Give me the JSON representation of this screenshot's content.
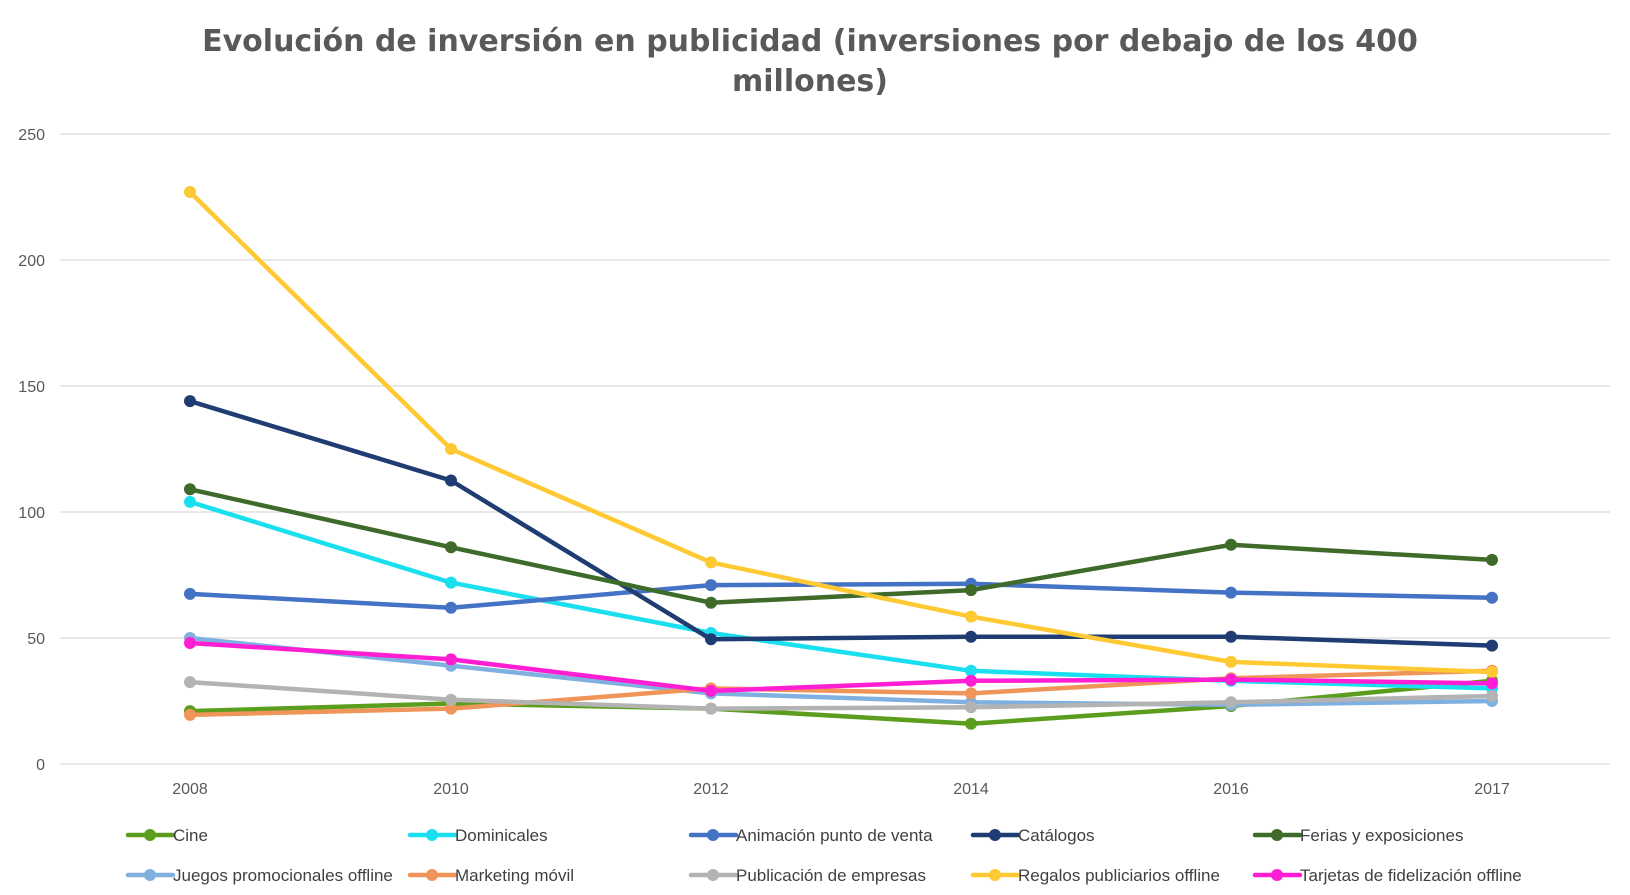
{
  "chart_data": {
    "type": "line",
    "title": "Evolución de inversión en publicidad (inversiones por debajo de los 400 millones)",
    "xlabel": "",
    "ylabel": "",
    "x": [
      "2008",
      "2010",
      "2012",
      "2014",
      "2016",
      "2017"
    ],
    "ylim": [
      0,
      250
    ],
    "yticks": [
      0,
      50,
      100,
      150,
      200,
      250
    ],
    "grid": true,
    "legend_position": "bottom",
    "series": [
      {
        "name": "Cine",
        "color": "#5b9e1e",
        "values": [
          21,
          24,
          22,
          16,
          23,
          33
        ]
      },
      {
        "name": "Dominicales",
        "color": "#19dfef",
        "values": [
          104,
          72,
          52,
          37,
          33,
          30
        ]
      },
      {
        "name": "Animación punto de venta",
        "color": "#4472c4",
        "values": [
          67.5,
          62,
          71,
          71.5,
          68,
          66
        ]
      },
      {
        "name": "Catálogos",
        "color": "#1f3c73",
        "values": [
          144,
          112.5,
          49.5,
          50.5,
          50.5,
          47
        ]
      },
      {
        "name": "Ferias y exposiciones",
        "color": "#3e6b2a",
        "values": [
          109,
          86,
          64,
          69,
          87,
          81
        ]
      },
      {
        "name": "Juegos promocionales offline",
        "color": "#7fb0e0",
        "values": [
          50,
          39,
          28,
          24.5,
          23.5,
          25
        ]
      },
      {
        "name": "Marketing móvil",
        "color": "#f0955a",
        "values": [
          19.5,
          22,
          30,
          28,
          34,
          37
        ]
      },
      {
        "name": "Publicación de empresas",
        "color": "#b3b3b3",
        "values": [
          32.5,
          25.5,
          22,
          22.5,
          24.5,
          27
        ]
      },
      {
        "name": "Regalos publiciarios offline",
        "color": "#ffc933",
        "values": [
          227,
          125,
          80,
          58.5,
          40.5,
          36.5
        ]
      },
      {
        "name": "Tarjetas de fidelización offline",
        "color": "#ff1ed3",
        "values": [
          48,
          41.5,
          29,
          33,
          33.5,
          32
        ]
      }
    ]
  }
}
